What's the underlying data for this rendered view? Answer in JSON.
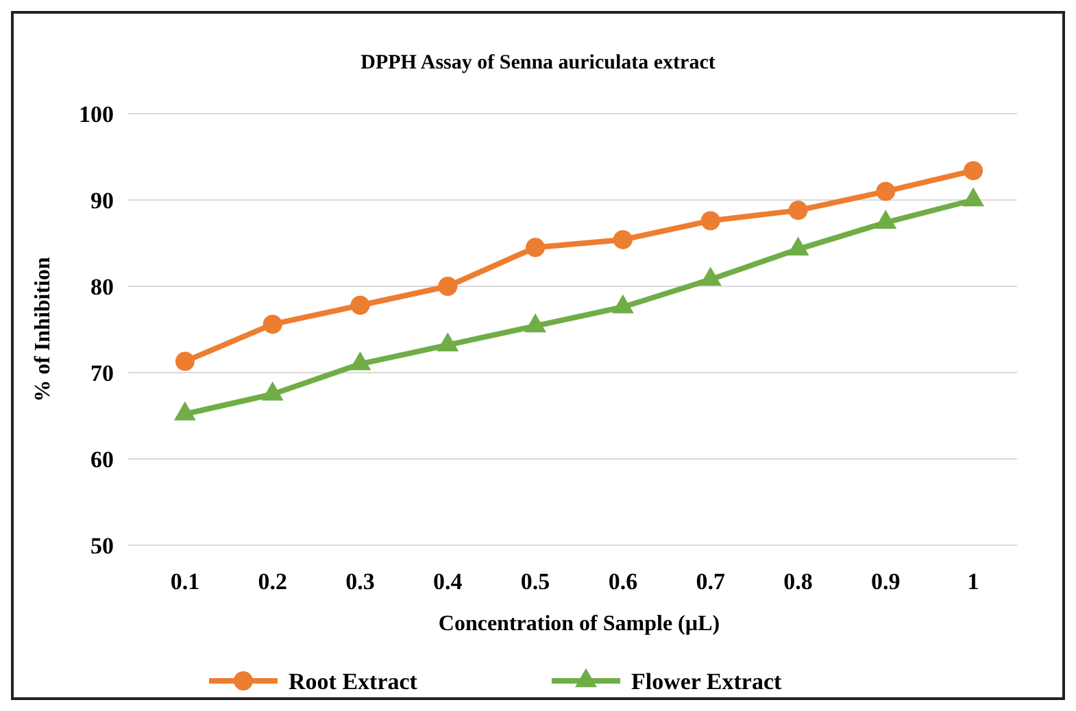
{
  "chart_data": {
    "type": "line",
    "title": "DPPH  Assay of Senna auriculata extract",
    "xlabel": "Concentration  of Sample (µL)",
    "ylabel": "% of Inhibition",
    "categories": [
      "0.1",
      "0.2",
      "0.3",
      "0.4",
      "0.5",
      "0.6",
      "0.7",
      "0.8",
      "0.9",
      "1"
    ],
    "series": [
      {
        "name": "Root Extract",
        "color": "#ed7d31",
        "marker": "circle",
        "values": [
          71.3,
          75.6,
          77.8,
          80.0,
          84.5,
          85.4,
          87.6,
          88.8,
          91.0,
          93.4
        ]
      },
      {
        "name": "Flower Extract",
        "color": "#70ad47",
        "marker": "triangle",
        "values": [
          65.2,
          67.5,
          71.0,
          73.2,
          75.4,
          77.6,
          80.8,
          84.3,
          87.4,
          90.0
        ]
      }
    ],
    "ylim": [
      50,
      100
    ],
    "yticks": [
      50,
      60,
      70,
      80,
      90,
      100
    ],
    "grid": "y",
    "legend": "bottom",
    "line_style": "solid"
  }
}
